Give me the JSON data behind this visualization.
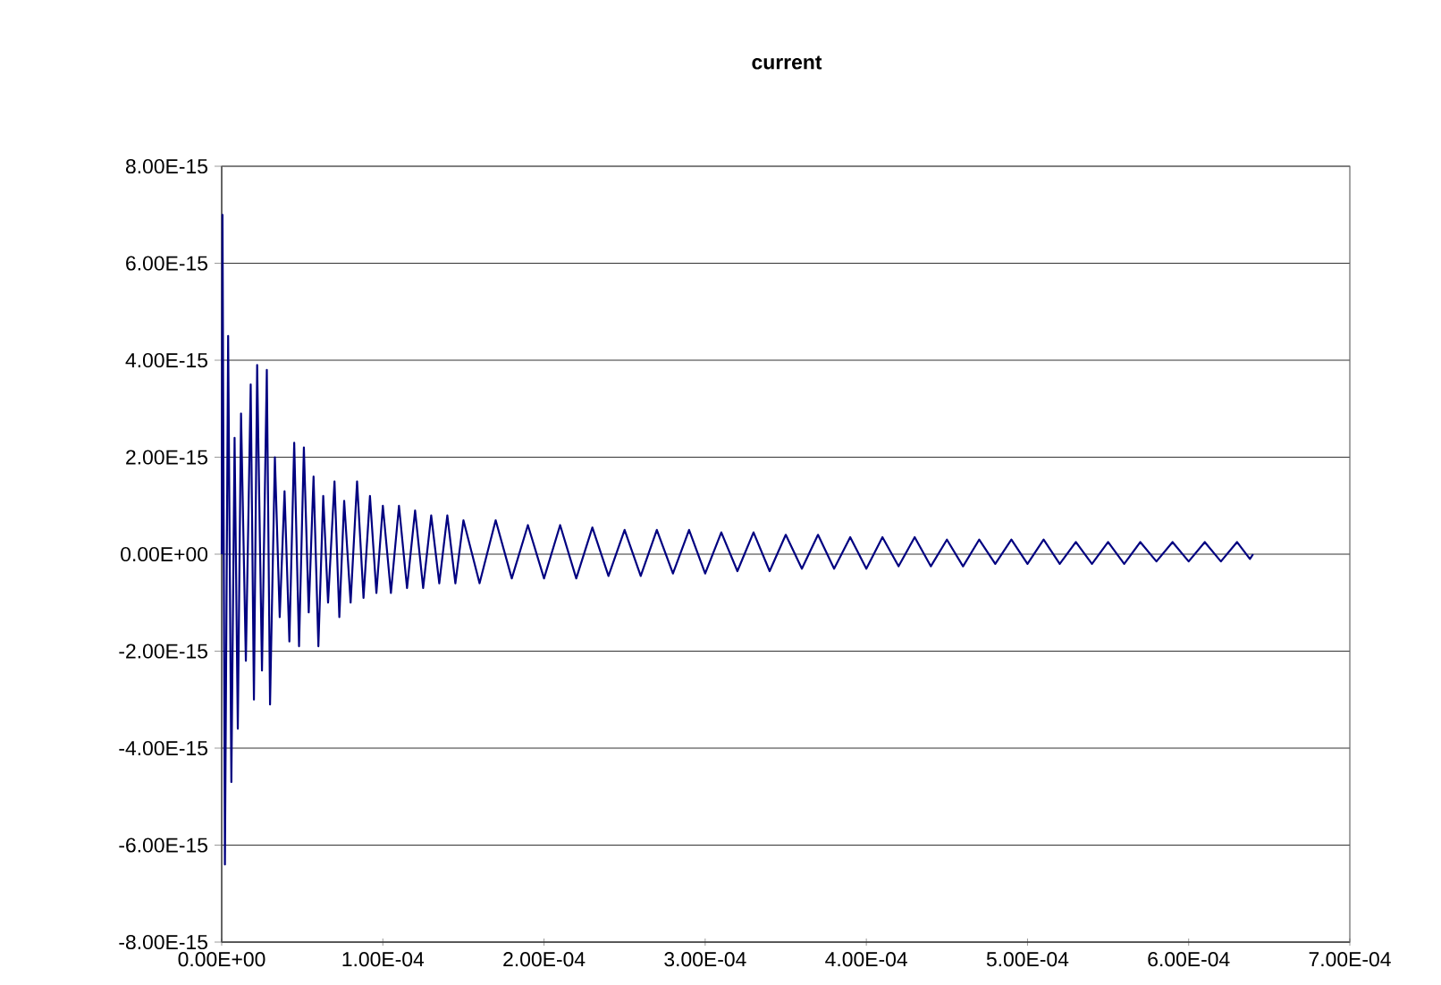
{
  "chart_data": {
    "type": "line",
    "title": "current",
    "x": [
      0,
      5e-07,
      2e-06,
      4e-06,
      6e-06,
      8e-06,
      1e-05,
      1.2e-05,
      1.5e-05,
      1.8e-05,
      2e-05,
      2.2e-05,
      2.5e-05,
      2.8e-05,
      3e-05,
      3.3e-05,
      3.6e-05,
      3.9e-05,
      4.2e-05,
      4.5e-05,
      4.8e-05,
      5.1e-05,
      5.4e-05,
      5.7e-05,
      6e-05,
      6.3e-05,
      6.6e-05,
      7e-05,
      7.3e-05,
      7.6e-05,
      8e-05,
      8.4e-05,
      8.8e-05,
      9.2e-05,
      9.6e-05,
      0.0001,
      0.000105,
      0.00011,
      0.000115,
      0.00012,
      0.000125,
      0.00013,
      0.000135,
      0.00014,
      0.000145,
      0.00015,
      0.00016,
      0.00017,
      0.00018,
      0.00019,
      0.0002,
      0.00021,
      0.00022,
      0.00023,
      0.00024,
      0.00025,
      0.00026,
      0.00027,
      0.00028,
      0.00029,
      0.0003,
      0.00031,
      0.00032,
      0.00033,
      0.00034,
      0.00035,
      0.00036,
      0.00037,
      0.00038,
      0.00039,
      0.0004,
      0.00041,
      0.00042,
      0.00043,
      0.00044,
      0.00045,
      0.00046,
      0.00047,
      0.00048,
      0.00049,
      0.0005,
      0.00051,
      0.00052,
      0.00053,
      0.00054,
      0.00055,
      0.00056,
      0.00057,
      0.00058,
      0.00059,
      0.0006,
      0.00061,
      0.00062,
      0.00063,
      0.000638,
      0.00064
    ],
    "series": [
      {
        "color": "#000080",
        "values": [
          0,
          7e-15,
          -6.4e-15,
          4.5e-15,
          -4.7e-15,
          2.4e-15,
          -3.6e-15,
          2.9e-15,
          -2.2e-15,
          3.5e-15,
          -3e-15,
          3.9e-15,
          -2.4e-15,
          3.8e-15,
          -3.1e-15,
          2e-15,
          -1.3e-15,
          1.3e-15,
          -1.8e-15,
          2.3e-15,
          -1.9e-15,
          2.2e-15,
          -1.2e-15,
          1.6e-15,
          -1.9e-15,
          1.2e-15,
          -1e-15,
          1.5e-15,
          -1.3e-15,
          1.1e-15,
          -1e-15,
          1.5e-15,
          -9e-16,
          1.2e-15,
          -8e-16,
          1e-15,
          -8e-16,
          1e-15,
          -7e-16,
          9e-16,
          -7e-16,
          8e-16,
          -6e-16,
          8e-16,
          -6e-16,
          7e-16,
          -6e-16,
          7e-16,
          -5e-16,
          6e-16,
          -5e-16,
          6e-16,
          -5e-16,
          5.5e-16,
          -4.5e-16,
          5e-16,
          -4.5e-16,
          5e-16,
          -4e-16,
          5e-16,
          -4e-16,
          4.5e-16,
          -3.5e-16,
          4.5e-16,
          -3.5e-16,
          4e-16,
          -3e-16,
          4e-16,
          -3e-16,
          3.5e-16,
          -3e-16,
          3.5e-16,
          -2.5e-16,
          3.5e-16,
          -2.5e-16,
          3e-16,
          -2.5e-16,
          3e-16,
          -2e-16,
          3e-16,
          -2e-16,
          3e-16,
          -2e-16,
          2.5e-16,
          -2e-16,
          2.5e-16,
          -2e-16,
          2.5e-16,
          -1.5e-16,
          2.5e-16,
          -1.5e-16,
          2.5e-16,
          -1.5e-16,
          2.5e-16,
          -1e-16,
          0
        ]
      }
    ],
    "xlim": [
      0,
      0.0007
    ],
    "ylim": [
      -8e-15,
      8e-15
    ],
    "xticks": [
      {
        "value": 0,
        "label": "0.00E+00"
      },
      {
        "value": 0.0001,
        "label": "1.00E-04"
      },
      {
        "value": 0.0002,
        "label": "2.00E-04"
      },
      {
        "value": 0.0003,
        "label": "3.00E-04"
      },
      {
        "value": 0.0004,
        "label": "4.00E-04"
      },
      {
        "value": 0.0005,
        "label": "5.00E-04"
      },
      {
        "value": 0.0006,
        "label": "6.00E-04"
      },
      {
        "value": 0.0007,
        "label": "7.00E-04"
      }
    ],
    "yticks": [
      {
        "value": -8e-15,
        "label": "-8.00E-15"
      },
      {
        "value": -6e-15,
        "label": "-6.00E-15"
      },
      {
        "value": -4e-15,
        "label": "-4.00E-15"
      },
      {
        "value": -2e-15,
        "label": "-2.00E-15"
      },
      {
        "value": 0,
        "label": "0.00E+00"
      },
      {
        "value": 2e-15,
        "label": "2.00E-15"
      },
      {
        "value": 4e-15,
        "label": "4.00E-15"
      },
      {
        "value": 6e-15,
        "label": "6.00E-15"
      },
      {
        "value": 8e-15,
        "label": "8.00E-15"
      }
    ],
    "grid": "y",
    "marker": "none"
  }
}
